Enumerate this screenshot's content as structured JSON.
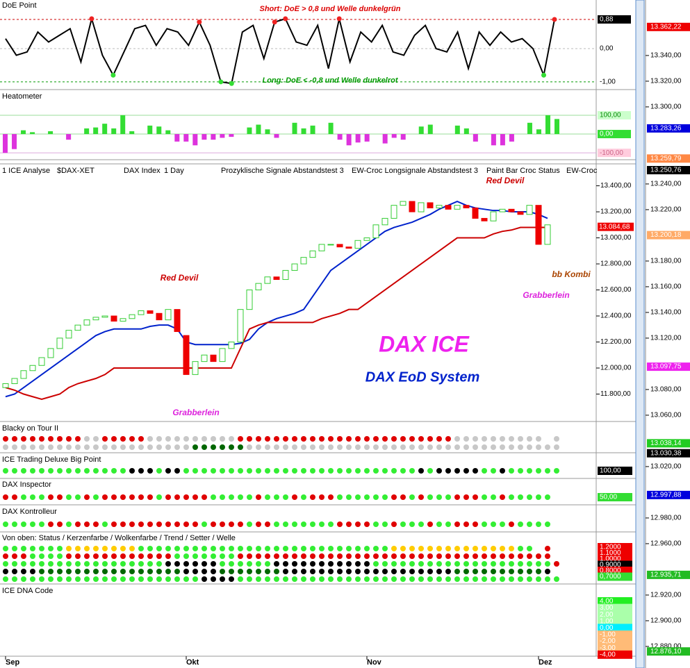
{
  "chart_data": [
    {
      "type": "line",
      "title": "DoE Point",
      "color": "#000000",
      "values": [
        0.3,
        -0.2,
        -0.1,
        0.5,
        0.2,
        0.4,
        0.6,
        -0.4,
        0.9,
        -0.2,
        -0.8,
        -0.1,
        0.6,
        0.7,
        0.1,
        0.6,
        0.5,
        0.1,
        0.8,
        0.1,
        -1.0,
        -1.05,
        0.5,
        0.7,
        -0.3,
        0.8,
        0.9,
        0.2,
        0.1,
        0.7,
        -0.6,
        0.9,
        -0.4,
        0.5,
        0.2,
        0.7,
        -0.1,
        -0.2,
        0.4,
        0.7,
        0.0,
        -0.1,
        0.5,
        -0.6,
        0.5,
        0.1,
        0.5,
        0.2,
        0.3,
        0.0,
        -0.8,
        0.88
      ],
      "ylim": [
        -1.15,
        1.36
      ],
      "yticks": [
        {
          "value": 0.88,
          "label": "0,88"
        },
        {
          "value": 0,
          "label": "0,00"
        },
        {
          "value": -1,
          "label": "-1,00"
        }
      ],
      "annotations": [
        "Short: DoE > 0,8 und Welle dunkelgrün",
        "Long: DoE < -0,8 und Welle dunkelrot"
      ]
    },
    {
      "type": "bar",
      "title": "Heatometer",
      "colors": {
        "positive": "#33dd33",
        "negative": "#dd33dd"
      },
      "values": [
        -100,
        -80,
        20,
        10,
        0,
        15,
        0,
        -30,
        0,
        30,
        35,
        55,
        30,
        100,
        15,
        0,
        45,
        40,
        20,
        -40,
        -40,
        -60,
        -30,
        -30,
        -20,
        -15,
        0,
        35,
        50,
        25,
        -20,
        0,
        60,
        30,
        45,
        0,
        60,
        -30,
        -60,
        -45,
        -40,
        0,
        -50,
        -20,
        -30,
        0,
        40,
        50,
        0,
        0,
        45,
        30,
        -40,
        0,
        -60,
        -60,
        -40,
        0,
        60,
        25,
        100,
        80
      ],
      "ylim": [
        -118,
        159
      ],
      "yticks": [
        {
          "value": 100,
          "label": "100,00"
        },
        {
          "value": 0,
          "label": "0,00"
        },
        {
          "value": -100,
          "label": "-100,00"
        }
      ]
    },
    {
      "type": "candlestick",
      "header": [
        "1 ICE Analyse",
        "$DAX-XET",
        "DAX Index",
        "1 Day",
        "Prozyklische Signale Abstandstest 3",
        "EW-Croc Longsignale Abstandstest 3",
        "Paint Bar Croc Status",
        "EW-Croc"
      ],
      "open": [
        11850,
        11880,
        11920,
        11980,
        12020,
        12080,
        12150,
        12230,
        12290,
        12330,
        12370,
        12390,
        12400,
        12360,
        12380,
        12410,
        12440,
        12420,
        12370,
        12450,
        12250,
        11950,
        12050,
        12100,
        12050,
        12150,
        12200,
        12450,
        12600,
        12650,
        12700,
        12680,
        12750,
        12800,
        12850,
        12900,
        12950,
        12950,
        12930,
        12920,
        12980,
        13000,
        13100,
        13150,
        13250,
        13280,
        13200,
        13270,
        13230,
        13250,
        13220,
        13250,
        13230,
        13150,
        13130,
        13200,
        13220,
        13200,
        13180,
        13250,
        12950
      ],
      "close": [
        11880,
        11920,
        11980,
        12020,
        12080,
        12150,
        12230,
        12290,
        12330,
        12370,
        12390,
        12400,
        12360,
        12380,
        12410,
        12440,
        12420,
        12370,
        12450,
        12280,
        11950,
        12050,
        12100,
        12050,
        12150,
        12200,
        12450,
        12600,
        12650,
        12700,
        12680,
        12750,
        12800,
        12850,
        12900,
        12950,
        12950,
        12930,
        12920,
        12980,
        13000,
        13100,
        13150,
        13250,
        13280,
        13200,
        13270,
        13230,
        13250,
        13220,
        13250,
        13230,
        13150,
        13130,
        13200,
        13220,
        13200,
        13180,
        13250,
        12950,
        13100
      ],
      "colors": {
        "up": "#33cc33",
        "down": "#ee0000"
      },
      "series": [
        {
          "color": "#0022cc",
          "values": [
            11780,
            11800,
            11850,
            11900,
            11950,
            12000,
            12050,
            12100,
            12150,
            12200,
            12250,
            12280,
            12300,
            12300,
            12300,
            12300,
            12320,
            12330,
            12330,
            12300,
            12200,
            12180,
            12180,
            12180,
            12180,
            12180,
            12190,
            12220,
            12300,
            12350,
            12380,
            12400,
            12420,
            12450,
            12550,
            12650,
            12750,
            12800,
            12850,
            12900,
            12950,
            13000,
            13050,
            13080,
            13100,
            13120,
            13150,
            13180,
            13220,
            13250,
            13280,
            13250,
            13230,
            13220,
            13210,
            13210,
            13200,
            13200,
            13200,
            13180,
            13150
          ]
        },
        {
          "color": "#cc0000",
          "values": [
            11850,
            11830,
            11800,
            11780,
            11760,
            11780,
            11800,
            11850,
            11880,
            11900,
            11920,
            11950,
            12000,
            12000,
            12000,
            12000,
            12000,
            12000,
            12000,
            12000,
            12000,
            12000,
            12000,
            12000,
            12000,
            12000,
            12150,
            12300,
            12330,
            12350,
            12350,
            12350,
            12350,
            12350,
            12350,
            12380,
            12400,
            12420,
            12450,
            12450,
            12500,
            12550,
            12600,
            12650,
            12700,
            12750,
            12800,
            12850,
            12900,
            12950,
            13000,
            13000,
            13000,
            13000,
            13030,
            13050,
            13060,
            13080,
            13080,
            13080,
            13080
          ]
        }
      ],
      "ylim": [
        11600,
        13467
      ],
      "yticks": [
        {
          "value": 11800,
          "label": "11.800,00"
        },
        {
          "value": 12000,
          "label": "12.000,00"
        },
        {
          "value": 12200,
          "label": "12.200,00"
        },
        {
          "value": 12400,
          "label": "12.400,00"
        },
        {
          "value": 12600,
          "label": "12.600,00"
        },
        {
          "value": 12800,
          "label": "12.800,00"
        },
        {
          "value": 13000,
          "label": "13.000,00"
        },
        {
          "value": 13200,
          "label": "13.200,00"
        },
        {
          "value": 13400,
          "label": "13.400,00"
        }
      ],
      "xticks": [
        {
          "value": 0,
          "label": "Sep"
        },
        {
          "value": 20,
          "label": "Okt"
        },
        {
          "value": 40,
          "label": "Nov"
        },
        {
          "value": 59,
          "label": "Dez"
        }
      ],
      "annotations": [
        "Red Devil",
        "Red Devil",
        "Grabberlein",
        "Grabberlein",
        "bb Kombi",
        "DAX ICE",
        "DAX EoD System"
      ],
      "last_price": {
        "value": 13084.68,
        "label": "13.084,68"
      }
    },
    {
      "type": "dots",
      "panels": [
        {
          "title": "Blacky on Tour II",
          "rows": [
            "rrrrrrrrrssrrrrrssssssssssrrrrrrrrrrrrrrrrrrrrrrrrssssssssss s",
            "sssssssssssssssssssssddddddsssssssssssssssssssssssssssssssssss"
          ]
        },
        {
          "title": "ICE Trading Deluxe Big Point",
          "rows": [
            "ggggggggggggggkkkgkkggggggggggggggggggggggggggkgkkkkkggkgggggg"
          ],
          "labels": [
            "100,00"
          ]
        },
        {
          "title": "DAX Inspector",
          "rows": [
            "rrgggrrggrgrrrrrrgrrrrrgggggrgggrgrrrggggggrrgrgggrrrggrggggg"
          ],
          "labels": [
            "50,00"
          ]
        },
        {
          "title": "DAX Kontrolleur",
          "rows": [
            "gggggrrgrrrgrrrrrrrrrrgrrrrgrrgggggggrrrrggrgggrggrrrgggrgggg"
          ]
        },
        {
          "title": "Von oben: Status / Kerzenfarbe / Wolkenfarbe / Trend / Setter / Welle",
          "rows": [
            "gggggggyyyyyyyyggggggggggggggggggggggggggggyyyyyyyyyyyyyygg r",
            "rrrggggrrrrrrrrrrrrgggggggrrrrrrrrrrrrrrrrrrrrrrrrrrrrrrrrrrr",
            "ggggggggggggggggggkkkkkkggggggkkkkkkkkkkkggggggggggggggggggggr",
            "kkkkddddddddddddddddkkkkdddddddkkkkkkkkkkkkkkkkkkkddddddddddk",
            "ggggggggggggggggggggggkkkkgggggggggggggggggggggggggggggggggggg"
          ],
          "labels": [
            "1,2000",
            "1,1000",
            "1,0000",
            "0,9000",
            "0,8000",
            "0,7000"
          ]
        },
        {
          "title": "ICE DNA Code",
          "rows": [],
          "labels": [
            "4,00",
            "3,00",
            "2,00",
            "1,00",
            "0,00",
            "-1,00",
            "-2,00",
            "-3,00",
            "-4,00"
          ]
        }
      ],
      "palette": {
        "r": "#e00000",
        "g": "#33ee33",
        "s": "#c8c8c8",
        "k": "#000000",
        "d": "#006600",
        "y": "#ffcc00"
      }
    }
  ],
  "price_axis": {
    "ylim": [
      12872.4,
      13383.2
    ],
    "yticks": [
      {
        "value": 13340,
        "label": "13.340,00"
      },
      {
        "value": 13320,
        "label": "13.320,00"
      },
      {
        "value": 13300,
        "label": "13.300,00"
      },
      {
        "value": 13240,
        "label": "13.240,00"
      },
      {
        "value": 13220,
        "label": "13.220,00"
      },
      {
        "value": 13180,
        "label": "13.180,00"
      },
      {
        "value": 13160,
        "label": "13.160,00"
      },
      {
        "value": 13140,
        "label": "13.140,00"
      },
      {
        "value": 13120,
        "label": "13.120,00"
      },
      {
        "value": 13080,
        "label": "13.080,00"
      },
      {
        "value": 13060,
        "label": "13.060,00"
      },
      {
        "value": 13020,
        "label": "13.020,00"
      },
      {
        "value": 12980,
        "label": "12.980,00"
      },
      {
        "value": 12960,
        "label": "12.960,00"
      },
      {
        "value": 12920,
        "label": "12.920,00"
      },
      {
        "value": 12900,
        "label": "12.900,00"
      },
      {
        "value": 12880,
        "label": "12.880,00"
      }
    ],
    "markers": [
      {
        "value": 13362.22,
        "label": "13.362,22",
        "color": "#ee0000"
      },
      {
        "value": 13283.26,
        "label": "13.283,26",
        "color": "#0000dd"
      },
      {
        "value": 13259.79,
        "label": "13.259,79",
        "color": "#ff8844"
      },
      {
        "value": 13250.76,
        "label": "13.250,76",
        "color": "#000000"
      },
      {
        "value": 13200.18,
        "label": "13.200,18",
        "color": "#ffaa66"
      },
      {
        "value": 13097.75,
        "label": "13.097,75",
        "color": "#ee22ee"
      },
      {
        "value": 13038.14,
        "label": "13.038,14",
        "color": "#22cc22"
      },
      {
        "value": 13030.38,
        "label": "13.030,38",
        "color": "#000000"
      },
      {
        "value": 12997.88,
        "label": "12.997,88",
        "color": "#0000dd"
      },
      {
        "value": 12935.71,
        "label": "12.935,71",
        "color": "#22bb22"
      },
      {
        "value": 12876.1,
        "label": "12.876,10",
        "color": "#22bb22"
      }
    ]
  }
}
